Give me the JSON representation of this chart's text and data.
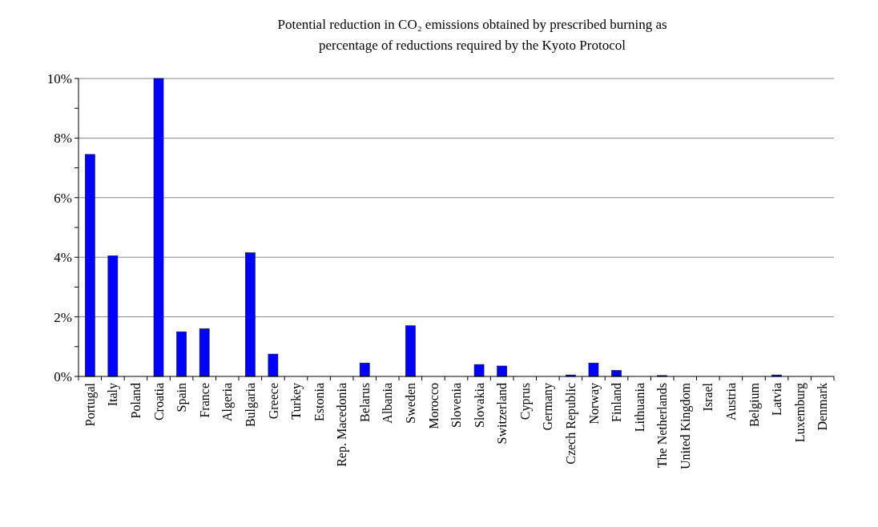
{
  "chart_data": {
    "type": "bar",
    "title": "Potential reduction in CO₂ emissions obtained by prescribed burning as percentage of reductions required by the Kyoto Protocol",
    "categories": [
      "Portugal",
      "Italy",
      "Poland",
      "Croatia",
      "Spain",
      "France",
      "Algeria",
      "Bulgaria",
      "Greece",
      "Turkey",
      "Estonia",
      "Rep. Macedonia",
      "Belarus",
      "Albania",
      "Sweden",
      "Morocco",
      "Slovenia",
      "Slovakia",
      "Switzerland",
      "Cyprus",
      "Germany",
      "Czech Republic",
      "Norway",
      "Finland",
      "Lithuania",
      "The Netherlands",
      "United Kingdom",
      "Israel",
      "Austria",
      "Belgium",
      "Latvia",
      "Luxemburg",
      "Denmark"
    ],
    "values": [
      7.45,
      4.05,
      0,
      10,
      1.5,
      1.6,
      0,
      4.15,
      0.75,
      0,
      0,
      0,
      0.45,
      0,
      1.7,
      0,
      0,
      0.4,
      0.35,
      0,
      0,
      0.05,
      0.45,
      0.2,
      0,
      0.03,
      0,
      0,
      0,
      0,
      0.05,
      0,
      0
    ],
    "color": "#0000ff",
    "ylim": [
      0,
      10
    ],
    "yticks": [
      {
        "value": 0,
        "label": "0%"
      },
      {
        "value": 1,
        "label": null
      },
      {
        "value": 2,
        "label": "2%"
      },
      {
        "value": 3,
        "label": null
      },
      {
        "value": 4,
        "label": "4%"
      },
      {
        "value": 5,
        "label": null
      },
      {
        "value": 6,
        "label": "6%"
      },
      {
        "value": 7,
        "label": null
      },
      {
        "value": 8,
        "label": "8%"
      },
      {
        "value": 9,
        "label": null
      },
      {
        "value": 10,
        "label": "10%"
      }
    ],
    "grid": "y"
  }
}
